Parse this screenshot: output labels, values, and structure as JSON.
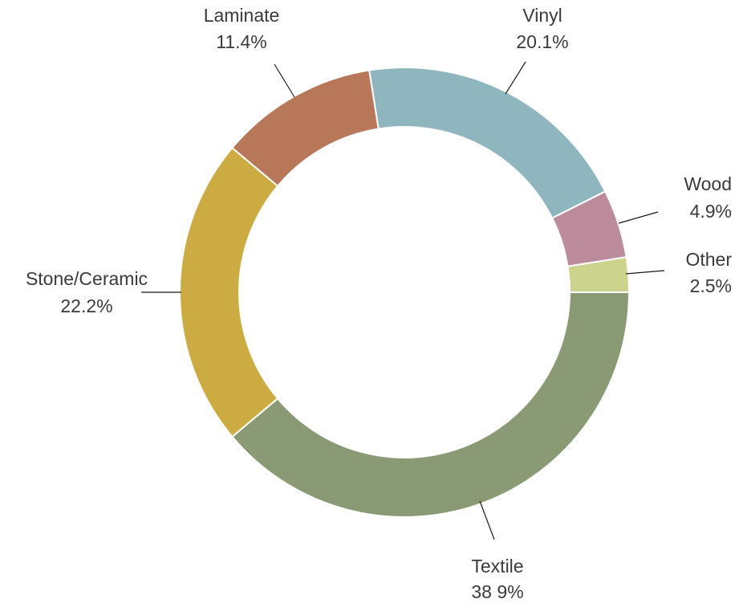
{
  "chart_data": {
    "type": "pie",
    "donut": true,
    "title": "",
    "slices": [
      {
        "name": "Textile",
        "label": "Textile",
        "value_label": "38 9%",
        "value": 38.9,
        "color": "#8a9a74"
      },
      {
        "name": "Stone/Ceramic",
        "label": "Stone/Ceramic",
        "value_label": "22.2%",
        "value": 22.2,
        "color": "#ccac42"
      },
      {
        "name": "Laminate",
        "label": "Laminate",
        "value_label": "11.4%",
        "value": 11.4,
        "color": "#b87759"
      },
      {
        "name": "Vinyl",
        "label": "Vinyl",
        "value_label": "20.1%",
        "value": 20.1,
        "color": "#8fb6bf"
      },
      {
        "name": "Wood",
        "label": "Wood",
        "value_label": "4.9%",
        "value": 4.9,
        "color": "#bd8c9c"
      },
      {
        "name": "Other",
        "label": "Other",
        "value_label": "2.5%",
        "value": 2.5,
        "color": "#ccd38c"
      }
    ],
    "legend": "none"
  }
}
